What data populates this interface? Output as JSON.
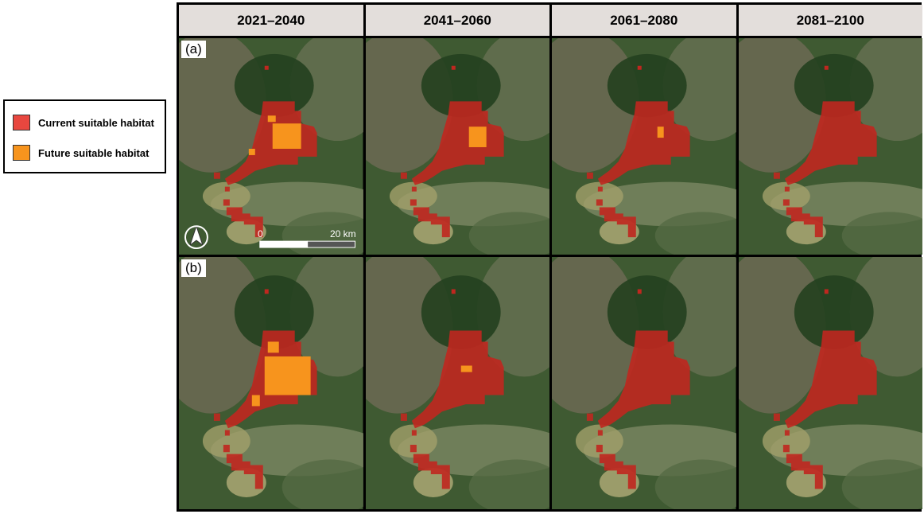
{
  "columns": [
    "2021–2040",
    "2041–2060",
    "2061–2080",
    "2081–2100"
  ],
  "rows": [
    "(a)",
    "(b)"
  ],
  "legend": [
    "Current suitable habitat",
    "Future suitable habitat"
  ],
  "scale_bar": {
    "start": "0",
    "end": "20 km"
  }
}
